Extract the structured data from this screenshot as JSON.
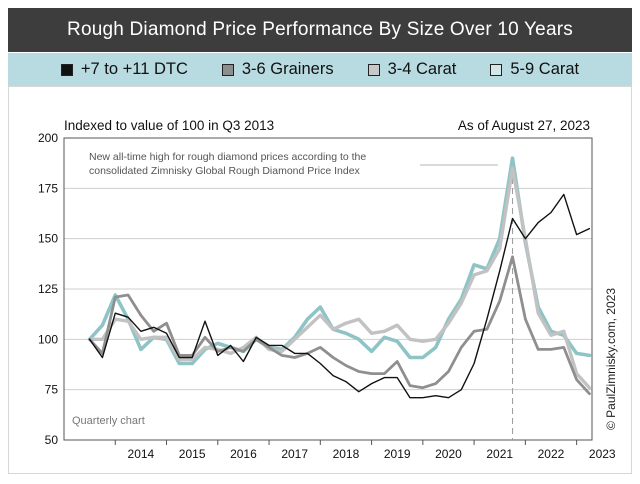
{
  "title": "Rough Diamond Price Performance By Size Over 10 Years",
  "legend": [
    {
      "label": "+7 to +11 DTC",
      "color": "#111111"
    },
    {
      "label": "3-6 Grainers",
      "color": "#8e8e8e"
    },
    {
      "label": "3-4 Carat",
      "color": "#c8c8c8"
    },
    {
      "label": "5-9 Carat",
      "color": "#d3e7e9"
    }
  ],
  "subtitle_left": "Indexed to value of 100 in Q3 2013",
  "subtitle_right": "As of August 27, 2023",
  "annotation_line1": "New all-time high for rough diamond prices according to the",
  "annotation_line2": "consolidated Zimnisky Global Rough Diamond Price Index",
  "quarterly_label": "Quarterly chart",
  "copyright": "© PaulZimnisky.com, 2023",
  "chart_data": {
    "type": "line",
    "ylim": [
      50,
      200
    ],
    "yticks": [
      50,
      75,
      100,
      125,
      150,
      175,
      200
    ],
    "xlim": [
      2013.0,
      2023.3
    ],
    "xticks": [
      "2014",
      "2015",
      "2016",
      "2017",
      "2018",
      "2019",
      "2020",
      "2021",
      "2022",
      "2023"
    ],
    "peak_marker_x": 2021.75,
    "series": [
      {
        "name": "5-9 Carat",
        "color": "#8fc4c7",
        "x": [
          2013.5,
          2013.75,
          2014.0,
          2014.25,
          2014.5,
          2014.75,
          2015.0,
          2015.25,
          2015.5,
          2015.75,
          2016.0,
          2016.25,
          2016.5,
          2016.75,
          2017.0,
          2017.25,
          2017.5,
          2017.75,
          2018.0,
          2018.25,
          2018.5,
          2018.75,
          2019.0,
          2019.25,
          2019.5,
          2019.75,
          2020.0,
          2020.25,
          2020.5,
          2020.75,
          2021.0,
          2021.25,
          2021.5,
          2021.75,
          2022.0,
          2022.25,
          2022.5,
          2022.75,
          2023.0,
          2023.25
        ],
        "values": [
          100,
          107,
          122,
          110,
          95,
          101,
          100,
          88,
          88,
          95,
          98,
          96,
          94,
          100,
          96,
          95,
          101,
          110,
          116,
          105,
          103,
          100,
          94,
          101,
          99,
          91,
          91,
          96,
          110,
          120,
          137,
          135,
          150,
          190,
          148,
          116,
          104,
          102,
          93,
          92
        ]
      },
      {
        "name": "3-4 Carat",
        "color": "#c2c2c2",
        "x": [
          2013.5,
          2013.75,
          2014.0,
          2014.25,
          2014.5,
          2014.75,
          2015.0,
          2015.25,
          2015.5,
          2015.75,
          2016.0,
          2016.25,
          2016.5,
          2016.75,
          2017.0,
          2017.25,
          2017.5,
          2017.75,
          2018.0,
          2018.25,
          2018.5,
          2018.75,
          2019.0,
          2019.25,
          2019.5,
          2019.75,
          2020.0,
          2020.25,
          2020.5,
          2020.75,
          2021.0,
          2021.25,
          2021.5,
          2021.75,
          2022.0,
          2022.25,
          2022.5,
          2022.75,
          2023.0,
          2023.25
        ],
        "values": [
          100,
          100,
          110,
          109,
          100,
          101,
          101,
          90,
          90,
          96,
          95,
          93,
          96,
          101,
          95,
          94,
          100,
          106,
          112,
          105,
          108,
          110,
          103,
          104,
          107,
          100,
          99,
          100,
          108,
          118,
          132,
          134,
          145,
          185,
          150,
          113,
          102,
          104,
          83,
          76
        ]
      },
      {
        "name": "3-6 Grainers",
        "color": "#8f8f8f",
        "x": [
          2013.5,
          2013.75,
          2014.0,
          2014.25,
          2014.5,
          2014.75,
          2015.0,
          2015.25,
          2015.5,
          2015.75,
          2016.0,
          2016.25,
          2016.5,
          2016.75,
          2017.0,
          2017.25,
          2017.5,
          2017.75,
          2018.0,
          2018.25,
          2018.5,
          2018.75,
          2019.0,
          2019.25,
          2019.5,
          2019.75,
          2020.0,
          2020.25,
          2020.5,
          2020.75,
          2021.0,
          2021.25,
          2021.5,
          2021.75,
          2022.0,
          2022.25,
          2022.5,
          2022.75,
          2023.0,
          2023.25
        ],
        "values": [
          100,
          93,
          121,
          122,
          112,
          104,
          108,
          92,
          92,
          101,
          94,
          96,
          94,
          100,
          96,
          92,
          91,
          93,
          96,
          91,
          87,
          84,
          83,
          83,
          89,
          77,
          76,
          78,
          84,
          96,
          104,
          105,
          119,
          141,
          110,
          95,
          95,
          96,
          80,
          73
        ]
      },
      {
        "name": "+7 to +11 DTC",
        "color": "#111111",
        "x": [
          2013.5,
          2013.75,
          2014.0,
          2014.25,
          2014.5,
          2014.75,
          2015.0,
          2015.25,
          2015.5,
          2015.75,
          2016.0,
          2016.25,
          2016.5,
          2016.75,
          2017.0,
          2017.25,
          2017.5,
          2017.75,
          2018.0,
          2018.25,
          2018.5,
          2018.75,
          2019.0,
          2019.25,
          2019.5,
          2019.75,
          2020.0,
          2020.25,
          2020.5,
          2020.75,
          2021.0,
          2021.25,
          2021.5,
          2021.75,
          2022.0,
          2022.25,
          2022.5,
          2022.75,
          2023.0,
          2023.25
        ],
        "values": [
          100,
          91,
          113,
          111,
          104,
          106,
          103,
          91,
          91,
          109,
          92,
          97,
          89,
          101,
          97,
          97,
          93,
          93,
          88,
          82,
          79,
          74,
          78,
          81,
          81,
          71,
          71,
          72,
          71,
          75,
          88,
          110,
          134,
          160,
          150,
          158,
          163,
          172,
          152,
          155
        ]
      }
    ]
  }
}
